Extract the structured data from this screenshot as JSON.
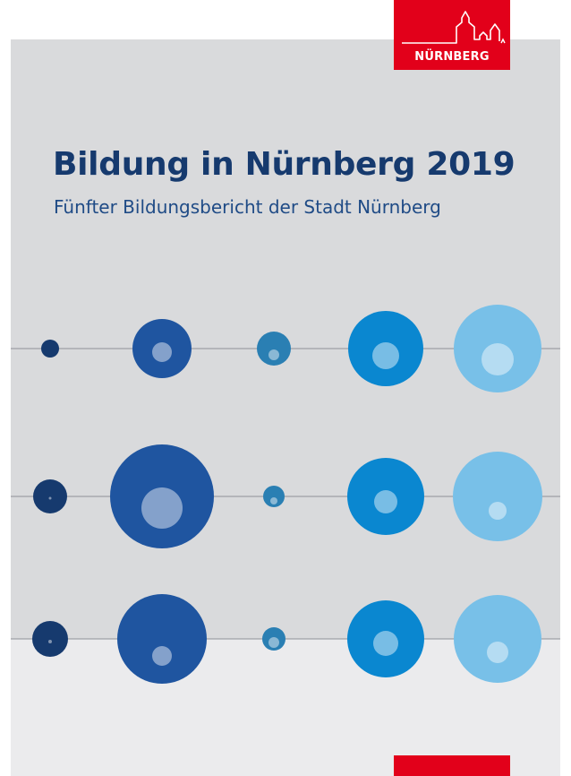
{
  "logo": {
    "text": "NÜRNBERG",
    "color": "#e2001a"
  },
  "cover": {
    "title": "Bildung in Nürnberg 2019",
    "subtitle": "Fünfter Bildungsbericht der Stadt Nürnberg",
    "title_color": "#163a6e",
    "background": "#d9dadc"
  },
  "palette": {
    "navy": "#163a6e",
    "royal": "#1f55a0",
    "teal": "#2a7fb3",
    "blue": "#0a87d0",
    "sky": "#78c0e8"
  }
}
